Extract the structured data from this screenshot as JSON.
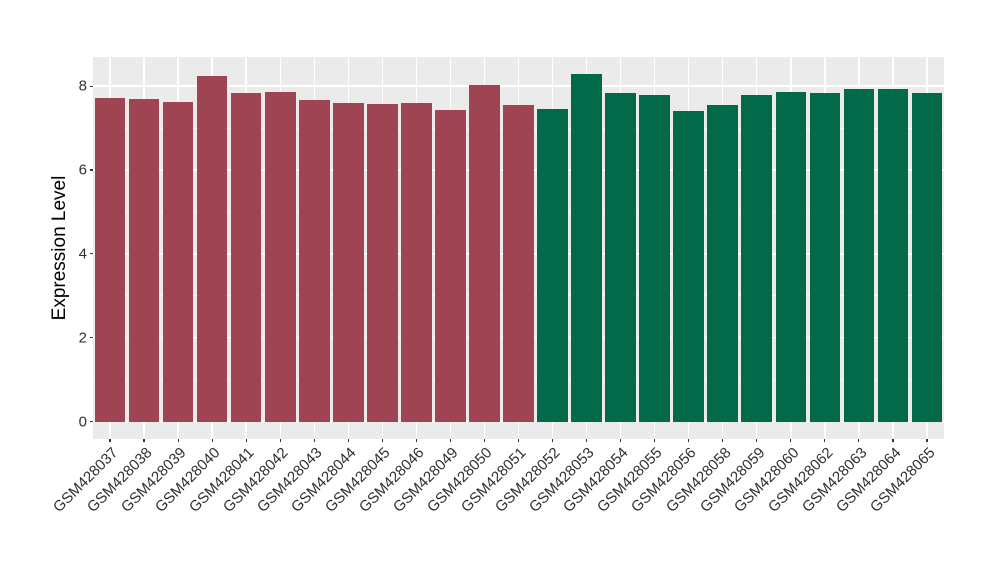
{
  "chart_data": {
    "type": "bar",
    "title": "",
    "xlabel": "",
    "ylabel": "Expression Level",
    "ylim": [
      0,
      8.7
    ],
    "yticks": [
      0,
      2,
      4,
      6,
      8
    ],
    "yticks_minor": [
      1,
      3,
      5,
      7
    ],
    "grid": true,
    "legend_position": "none",
    "panel_background": "#EBEBEB",
    "gridline_color": "#FFFFFF",
    "bar_width_fraction": 0.9,
    "series": [
      {
        "name": "red-group",
        "color": "#9E4453",
        "categories": [
          "GSM428037",
          "GSM428038",
          "GSM428039",
          "GSM428040",
          "GSM428041",
          "GSM428042",
          "GSM428043",
          "GSM428044",
          "GSM428045",
          "GSM428046",
          "GSM428049",
          "GSM428050",
          "GSM428051"
        ],
        "values": [
          7.72,
          7.69,
          7.62,
          8.25,
          7.84,
          7.87,
          7.68,
          7.6,
          7.58,
          7.6,
          7.43,
          8.03,
          7.55
        ]
      },
      {
        "name": "green-group",
        "color": "#026949",
        "categories": [
          "GSM428052",
          "GSM428053",
          "GSM428054",
          "GSM428055",
          "GSM428056",
          "GSM428058",
          "GSM428059",
          "GSM428060",
          "GSM428062",
          "GSM428063",
          "GSM428064",
          "GSM428065"
        ],
        "values": [
          7.46,
          8.3,
          7.84,
          7.78,
          7.41,
          7.55,
          7.8,
          7.86,
          7.83,
          7.93,
          7.94,
          7.83
        ]
      }
    ]
  }
}
